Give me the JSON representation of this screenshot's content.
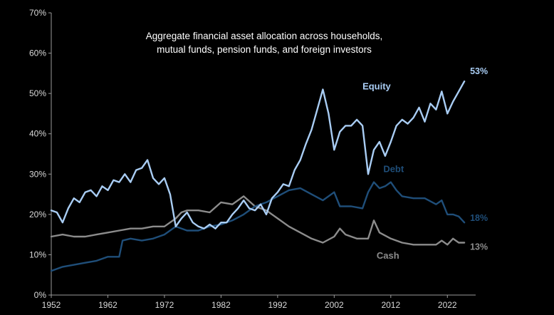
{
  "chart_data": {
    "type": "line",
    "title_lines": [
      "Aggregate financial asset allocation across households,",
      "mutual funds, pension funds, and foreign investors"
    ],
    "xlabel": "",
    "ylabel": "",
    "x_ticks": [
      "1952",
      "1962",
      "1972",
      "1982",
      "1992",
      "2002",
      "2012",
      "2022"
    ],
    "y_ticks": [
      "0%",
      "10%",
      "20%",
      "30%",
      "40%",
      "50%",
      "60%",
      "70%"
    ],
    "xlim": [
      1952,
      2027
    ],
    "ylim": [
      0,
      70
    ],
    "grid": false,
    "legend": "inline labels",
    "series": [
      {
        "name": "Equity",
        "color": "#a9cdf4",
        "end_label": "53%",
        "points": [
          [
            1952.0,
            21
          ],
          [
            1953.0,
            20.5
          ],
          [
            1954.0,
            18
          ],
          [
            1955.0,
            21.5
          ],
          [
            1956.0,
            24
          ],
          [
            1957.0,
            23
          ],
          [
            1958.0,
            25.5
          ],
          [
            1959.0,
            26
          ],
          [
            1960.0,
            24.5
          ],
          [
            1961.0,
            27
          ],
          [
            1962.0,
            26
          ],
          [
            1963.0,
            28.5
          ],
          [
            1964.0,
            28
          ],
          [
            1965.0,
            30
          ],
          [
            1966.0,
            28
          ],
          [
            1967.0,
            31
          ],
          [
            1968.0,
            31.5
          ],
          [
            1969.0,
            33.5
          ],
          [
            1970.0,
            29
          ],
          [
            1971.0,
            27.5
          ],
          [
            1972.0,
            29
          ],
          [
            1973.0,
            25
          ],
          [
            1974.0,
            17
          ],
          [
            1975.0,
            19
          ],
          [
            1976.0,
            20.5
          ],
          [
            1977.0,
            18
          ],
          [
            1978.0,
            17
          ],
          [
            1979.0,
            16.5
          ],
          [
            1980.0,
            17.5
          ],
          [
            1981.0,
            16.5
          ],
          [
            1982.0,
            18
          ],
          [
            1983.0,
            18
          ],
          [
            1984.0,
            20
          ],
          [
            1985.0,
            21.5
          ],
          [
            1986.0,
            23.5
          ],
          [
            1987.0,
            21.5
          ],
          [
            1988.0,
            21
          ],
          [
            1989.0,
            22.5
          ],
          [
            1990.0,
            20
          ],
          [
            1991.0,
            24
          ],
          [
            1992.0,
            25.5
          ],
          [
            1993.0,
            27.5
          ],
          [
            1994.0,
            27
          ],
          [
            1995.0,
            31
          ],
          [
            1996.0,
            33.5
          ],
          [
            1997.0,
            37.5
          ],
          [
            1998.0,
            41
          ],
          [
            1999.0,
            46
          ],
          [
            2000.0,
            51
          ],
          [
            2001.0,
            45
          ],
          [
            2002.0,
            36
          ],
          [
            2003.0,
            40.5
          ],
          [
            2004.0,
            42
          ],
          [
            2005.0,
            42
          ],
          [
            2006.0,
            43.5
          ],
          [
            2007.0,
            42
          ],
          [
            2008.0,
            30
          ],
          [
            2009.0,
            36
          ],
          [
            2010.0,
            38
          ],
          [
            2011.0,
            34.5
          ],
          [
            2012.0,
            38
          ],
          [
            2013.0,
            42
          ],
          [
            2014.0,
            43.5
          ],
          [
            2015.0,
            42.5
          ],
          [
            2016.0,
            44
          ],
          [
            2017.0,
            46.5
          ],
          [
            2018.0,
            43
          ],
          [
            2019.0,
            47.5
          ],
          [
            2020.0,
            46
          ],
          [
            2021.0,
            50.5
          ],
          [
            2022.0,
            45
          ],
          [
            2023.0,
            48
          ],
          [
            2024.0,
            50.5
          ],
          [
            2025.0,
            53
          ]
        ]
      },
      {
        "name": "Debt",
        "color": "#1f4e79",
        "end_label": "18%",
        "points": [
          [
            1952.0,
            6
          ],
          [
            1954.0,
            7
          ],
          [
            1956.0,
            7.5
          ],
          [
            1958.0,
            8
          ],
          [
            1960.0,
            8.5
          ],
          [
            1962.0,
            9.5
          ],
          [
            1964.0,
            9.5
          ],
          [
            1964.6,
            13.5
          ],
          [
            1966.0,
            14
          ],
          [
            1968.0,
            13.5
          ],
          [
            1970.0,
            14
          ],
          [
            1972.0,
            15
          ],
          [
            1974.0,
            17
          ],
          [
            1976.0,
            16
          ],
          [
            1978.0,
            16
          ],
          [
            1980.0,
            17
          ],
          [
            1982.0,
            17.5
          ],
          [
            1984.0,
            18.5
          ],
          [
            1986.0,
            20
          ],
          [
            1988.0,
            22
          ],
          [
            1990.0,
            23
          ],
          [
            1992.0,
            24.5
          ],
          [
            1994.0,
            26
          ],
          [
            1996.0,
            26.5
          ],
          [
            1998.0,
            25
          ],
          [
            2000.0,
            23.5
          ],
          [
            2002.0,
            25.5
          ],
          [
            2003.0,
            22
          ],
          [
            2005.0,
            22
          ],
          [
            2007.0,
            21.5
          ],
          [
            2008.0,
            25.5
          ],
          [
            2009.0,
            28
          ],
          [
            2010.0,
            26.5
          ],
          [
            2011.0,
            27
          ],
          [
            2012.0,
            28
          ],
          [
            2013.0,
            26
          ],
          [
            2014.0,
            24.5
          ],
          [
            2016.0,
            24
          ],
          [
            2018.0,
            24
          ],
          [
            2020.0,
            22.5
          ],
          [
            2021.0,
            23.5
          ],
          [
            2022.0,
            20
          ],
          [
            2023.0,
            20
          ],
          [
            2024.0,
            19.5
          ],
          [
            2025.0,
            18
          ]
        ]
      },
      {
        "name": "Cash",
        "color": "#8c8c8c",
        "end_label": "13%",
        "points": [
          [
            1952.0,
            14.5
          ],
          [
            1954.0,
            15
          ],
          [
            1956.0,
            14.5
          ],
          [
            1958.0,
            14.5
          ],
          [
            1960.0,
            15
          ],
          [
            1962.0,
            15.5
          ],
          [
            1964.0,
            16
          ],
          [
            1966.0,
            16.5
          ],
          [
            1968.0,
            16.5
          ],
          [
            1970.0,
            17
          ],
          [
            1972.0,
            17
          ],
          [
            1974.0,
            19
          ],
          [
            1975.0,
            20.5
          ],
          [
            1976.0,
            21
          ],
          [
            1978.0,
            21
          ],
          [
            1980.0,
            20.5
          ],
          [
            1982.0,
            23
          ],
          [
            1984.0,
            22.5
          ],
          [
            1986.0,
            24.5
          ],
          [
            1988.0,
            22
          ],
          [
            1990.0,
            21
          ],
          [
            1992.0,
            19
          ],
          [
            1994.0,
            17
          ],
          [
            1996.0,
            15.5
          ],
          [
            1998.0,
            14
          ],
          [
            2000.0,
            13
          ],
          [
            2002.0,
            14.5
          ],
          [
            2003.0,
            16.5
          ],
          [
            2004.0,
            15
          ],
          [
            2006.0,
            14
          ],
          [
            2008.0,
            14
          ],
          [
            2009.0,
            18.5
          ],
          [
            2010.0,
            15.5
          ],
          [
            2012.0,
            14
          ],
          [
            2014.0,
            13
          ],
          [
            2016.0,
            12.5
          ],
          [
            2018.0,
            12.5
          ],
          [
            2020.0,
            12.5
          ],
          [
            2021.0,
            13.5
          ],
          [
            2022.0,
            12.5
          ],
          [
            2023.0,
            14
          ],
          [
            2024.0,
            13
          ],
          [
            2025.0,
            13
          ]
        ]
      }
    ],
    "inline_labels": [
      {
        "series": "Equity",
        "text": "Equity",
        "x": 2009.5,
        "y": 51
      },
      {
        "series": "Debt",
        "text": "Debt",
        "x": 2012.5,
        "y": 30.5
      },
      {
        "series": "Cash",
        "text": "Cash",
        "x": 2011.5,
        "y": 9
      }
    ]
  }
}
